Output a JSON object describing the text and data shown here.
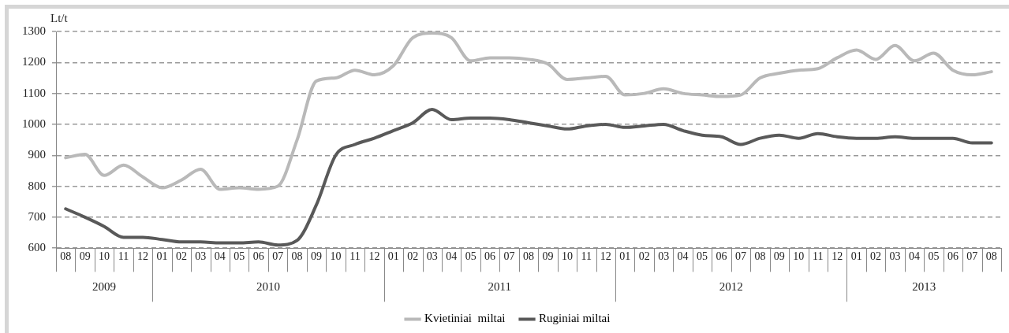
{
  "chart_data": {
    "type": "line",
    "ylabel": "Lt/t",
    "x": [
      "2009-08",
      "2009-09",
      "2009-10",
      "2009-11",
      "2009-12",
      "2010-01",
      "2010-02",
      "2010-03",
      "2010-04",
      "2010-05",
      "2010-06",
      "2010-07",
      "2010-08",
      "2010-09",
      "2010-10",
      "2010-11",
      "2010-12",
      "2011-01",
      "2011-02",
      "2011-03",
      "2011-04",
      "2011-05",
      "2011-06",
      "2011-07",
      "2011-08",
      "2011-09",
      "2011-10",
      "2011-11",
      "2011-12",
      "2012-01",
      "2012-02",
      "2012-03",
      "2012-04",
      "2012-05",
      "2012-06",
      "2012-07",
      "2012-08",
      "2012-09",
      "2012-10",
      "2012-11",
      "2012-12",
      "2013-01",
      "2013-02",
      "2013-03",
      "2013-04",
      "2013-05",
      "2013-06",
      "2013-07",
      "2013-08"
    ],
    "series": [
      {
        "name": "Kvietiniai  miltai",
        "color": "#b9b9b9",
        "values": [
          892,
          903,
          835,
          868,
          830,
          795,
          820,
          855,
          790,
          795,
          790,
          800,
          950,
          1140,
          1150,
          1175,
          1160,
          1190,
          1280,
          1295,
          1280,
          1205,
          1215,
          1215,
          1210,
          1195,
          1145,
          1150,
          1155,
          1095,
          1100,
          1115,
          1100,
          1095,
          1090,
          1095,
          1150,
          1165,
          1175,
          1180,
          1215,
          1240,
          1210,
          1255,
          1205,
          1230,
          1175,
          1160,
          1170
        ]
      },
      {
        "name": "Ruginiai miltai",
        "color": "#595959",
        "values": [
          727,
          700,
          670,
          635,
          635,
          628,
          620,
          620,
          617,
          617,
          620,
          610,
          625,
          740,
          900,
          935,
          955,
          980,
          1005,
          1048,
          1015,
          1020,
          1020,
          1015,
          1005,
          995,
          985,
          995,
          1000,
          990,
          995,
          1000,
          980,
          965,
          960,
          935,
          955,
          965,
          955,
          970,
          960,
          955,
          955,
          960,
          955,
          955,
          955,
          940,
          940
        ]
      }
    ],
    "xlim": [
      "2009-07-16",
      "2013-08-16"
    ],
    "xticks": [
      {
        "value": "2009-08",
        "label": "08"
      },
      {
        "value": "2009-09",
        "label": "09"
      },
      {
        "value": "2009-10",
        "label": "10"
      },
      {
        "value": "2009-11",
        "label": "11"
      },
      {
        "value": "2009-12",
        "label": "12"
      },
      {
        "value": "2010-01",
        "label": "01"
      },
      {
        "value": "2010-02",
        "label": "02"
      },
      {
        "value": "2010-03",
        "label": "03"
      },
      {
        "value": "2010-04",
        "label": "04"
      },
      {
        "value": "2010-05",
        "label": "05"
      },
      {
        "value": "2010-06",
        "label": "06"
      },
      {
        "value": "2010-07",
        "label": "07"
      },
      {
        "value": "2010-08",
        "label": "08"
      },
      {
        "value": "2010-09",
        "label": "09"
      },
      {
        "value": "2010-10",
        "label": "10"
      },
      {
        "value": "2010-11",
        "label": "11"
      },
      {
        "value": "2010-12",
        "label": "12"
      },
      {
        "value": "2011-01",
        "label": "01"
      },
      {
        "value": "2011-02",
        "label": "02"
      },
      {
        "value": "2011-03",
        "label": "03"
      },
      {
        "value": "2011-04",
        "label": "04"
      },
      {
        "value": "2011-05",
        "label": "05"
      },
      {
        "value": "2011-06",
        "label": "06"
      },
      {
        "value": "2011-07",
        "label": "07"
      },
      {
        "value": "2011-08",
        "label": "08"
      },
      {
        "value": "2011-09",
        "label": "09"
      },
      {
        "value": "2011-10",
        "label": "10"
      },
      {
        "value": "2011-11",
        "label": "11"
      },
      {
        "value": "2011-12",
        "label": "12"
      },
      {
        "value": "2012-01",
        "label": "01"
      },
      {
        "value": "2012-02",
        "label": "02"
      },
      {
        "value": "2012-03",
        "label": "03"
      },
      {
        "value": "2012-04",
        "label": "04"
      },
      {
        "value": "2012-05",
        "label": "05"
      },
      {
        "value": "2012-06",
        "label": "06"
      },
      {
        "value": "2012-07",
        "label": "07"
      },
      {
        "value": "2012-08",
        "label": "08"
      },
      {
        "value": "2012-09",
        "label": "09"
      },
      {
        "value": "2012-10",
        "label": "10"
      },
      {
        "value": "2012-11",
        "label": "11"
      },
      {
        "value": "2012-12",
        "label": "12"
      },
      {
        "value": "2013-01",
        "label": "01"
      },
      {
        "value": "2013-02",
        "label": "02"
      },
      {
        "value": "2013-03",
        "label": "03"
      },
      {
        "value": "2013-04",
        "label": "04"
      },
      {
        "value": "2013-05",
        "label": "05"
      },
      {
        "value": "2013-06",
        "label": "06"
      },
      {
        "value": "2013-07",
        "label": "07"
      },
      {
        "value": "2013-08",
        "label": "08"
      }
    ],
    "ylim": [
      600,
      1300
    ],
    "yticks": [
      600,
      700,
      800,
      900,
      1000,
      1100,
      1200,
      1300
    ],
    "annotations": [
      "2009",
      "2010",
      "2011",
      "2012",
      "2013"
    ],
    "grid": "y",
    "legend": "bottom",
    "marker": "none",
    "line_style": "solid"
  }
}
